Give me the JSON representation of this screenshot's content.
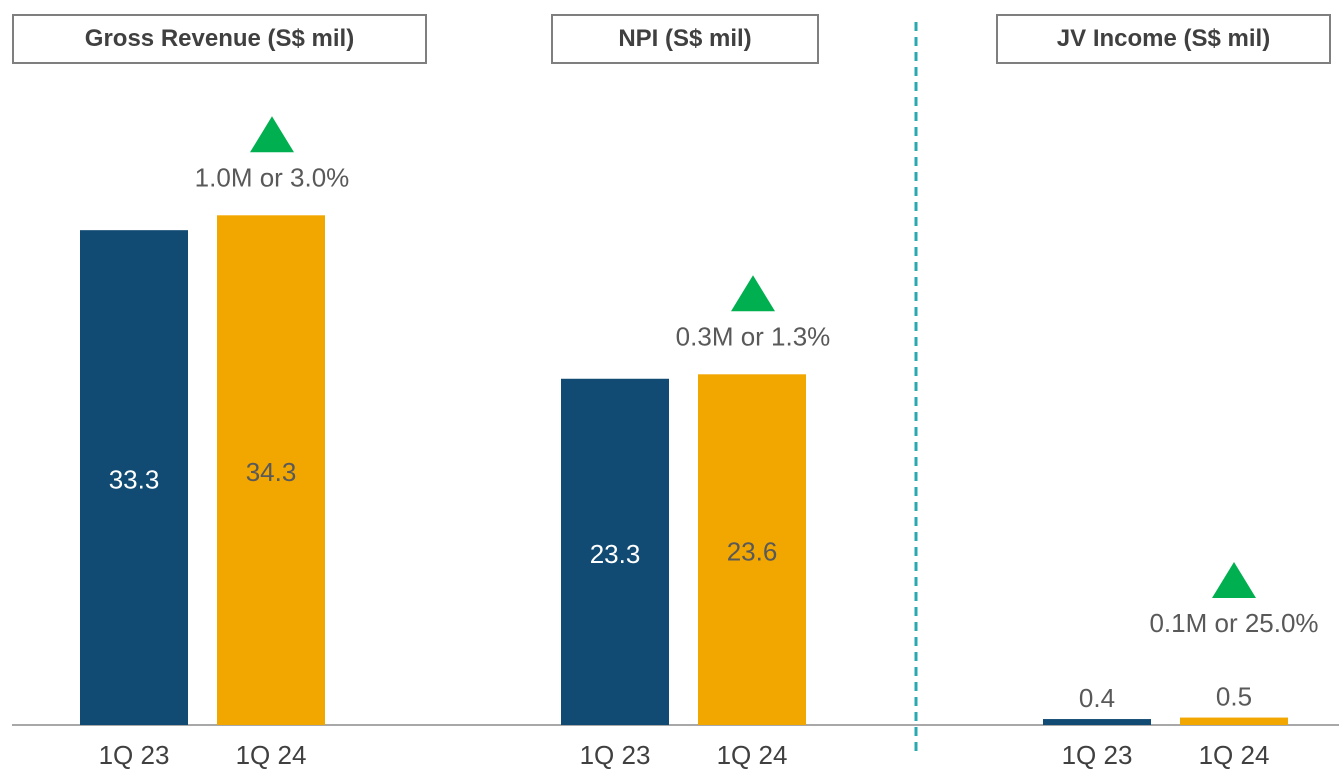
{
  "colors": {
    "series_1q23": "#114B73",
    "series_1q24": "#F2A600",
    "increase_arrow": "#00B050",
    "divider": "#2AA8B0",
    "label_text": "#595959"
  },
  "panels": [
    {
      "title": "Gross Revenue (S$ mil)",
      "change_label": "1.0M or 3.0%",
      "change_icon": "triangle-up-icon"
    },
    {
      "title": "NPI (S$ mil)",
      "change_label": "0.3M or 1.3%",
      "change_icon": "triangle-up-icon"
    },
    {
      "title": "JV Income (S$ mil)",
      "change_label": "0.1M or 25.0%",
      "change_icon": "triangle-up-icon"
    }
  ],
  "chart_data": [
    {
      "type": "bar",
      "title": "Gross Revenue (S$ mil)",
      "categories": [
        "1Q 23",
        "1Q 24"
      ],
      "values": [
        33.3,
        34.3
      ],
      "value_labels": [
        "33.3",
        "34.3"
      ],
      "annotation": "1.0M or 3.0%",
      "ylim": [
        0,
        40
      ]
    },
    {
      "type": "bar",
      "title": "NPI (S$ mil)",
      "categories": [
        "1Q 23",
        "1Q 24"
      ],
      "values": [
        23.3,
        23.6
      ],
      "value_labels": [
        "23.3",
        "23.6"
      ],
      "annotation": "0.3M or 1.3%",
      "ylim": [
        0,
        40
      ]
    },
    {
      "type": "bar",
      "title": "JV Income (S$ mil)",
      "categories": [
        "1Q 23",
        "1Q 24"
      ],
      "values": [
        0.4,
        0.5
      ],
      "value_labels": [
        "0.4",
        "0.5"
      ],
      "annotation": "0.1M or 25.0%",
      "ylim": [
        0,
        40
      ]
    }
  ]
}
